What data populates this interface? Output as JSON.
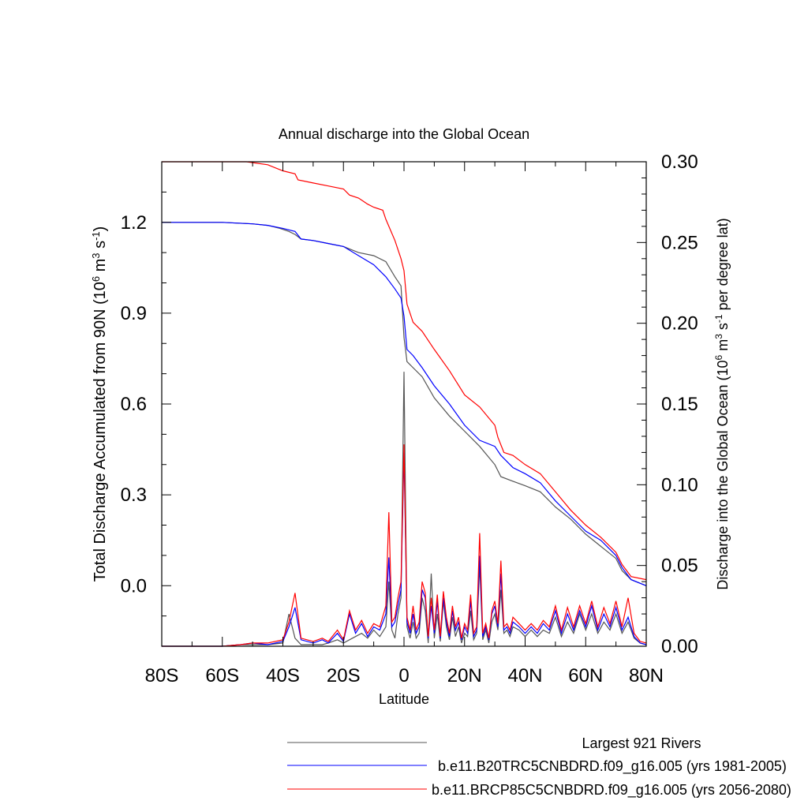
{
  "chart_data": {
    "type": "line",
    "title": "Annual discharge into the Global Ocean",
    "xlabel": "Latitude",
    "ylabel_left": "Total Discharge Accumulated from 90N (10^6 m^3 s^-1)",
    "ylabel_right": "Discharge into the Global Ocean (10^6 m^3 s^-1 per degree lat)",
    "xlim": [
      -80,
      80
    ],
    "ylim_left": [
      -0.2,
      1.4
    ],
    "ylim_right": [
      0.0,
      0.3
    ],
    "x_ticks": [
      {
        "value": -80,
        "label": "80S"
      },
      {
        "value": -60,
        "label": "60S"
      },
      {
        "value": -40,
        "label": "40S"
      },
      {
        "value": -20,
        "label": "20S"
      },
      {
        "value": 0,
        "label": "0"
      },
      {
        "value": 20,
        "label": "20N"
      },
      {
        "value": 40,
        "label": "40N"
      },
      {
        "value": 60,
        "label": "60N"
      },
      {
        "value": 80,
        "label": "80N"
      }
    ],
    "y_left_ticks": [
      {
        "value": 0.0,
        "label": "0.0"
      },
      {
        "value": 0.3,
        "label": "0.3"
      },
      {
        "value": 0.6,
        "label": "0.6"
      },
      {
        "value": 0.9,
        "label": "0.9"
      },
      {
        "value": 1.2,
        "label": "1.2"
      }
    ],
    "y_right_ticks": [
      {
        "value": 0.0,
        "label": "0.00"
      },
      {
        "value": 0.05,
        "label": "0.05"
      },
      {
        "value": 0.1,
        "label": "0.10"
      },
      {
        "value": 0.15,
        "label": "0.15"
      },
      {
        "value": 0.2,
        "label": "0.20"
      },
      {
        "value": 0.25,
        "label": "0.25"
      },
      {
        "value": 0.3,
        "label": "0.30"
      }
    ],
    "legend": [
      {
        "label": "Largest 921 Rivers",
        "color": "#555555"
      },
      {
        "label": "b.e11.B20TRC5CNBDRD.f09_g16.005 (yrs 1981-2005)",
        "color": "#0000ff"
      },
      {
        "label": "b.e11.BRCP85C5CNBDRD.f09_g16.005 (yrs 2056-2080)",
        "color": "#ff0000"
      }
    ],
    "series": [
      {
        "name": "Largest 921 Rivers",
        "axis": "left",
        "color": "#555555",
        "x": [
          -80,
          -60,
          -50,
          -45,
          -41,
          -38,
          -36,
          -34,
          -30,
          -25,
          -20,
          -15,
          -10,
          -6,
          -3,
          -1,
          0,
          1,
          3,
          6,
          10,
          15,
          20,
          25,
          30,
          32,
          36,
          40,
          45,
          50,
          55,
          60,
          65,
          70,
          72,
          75,
          80
        ],
        "y": [
          1.2,
          1.2,
          1.195,
          1.19,
          1.18,
          1.17,
          1.16,
          1.145,
          1.14,
          1.13,
          1.12,
          1.1,
          1.09,
          1.07,
          1.02,
          0.99,
          0.82,
          0.74,
          0.72,
          0.69,
          0.62,
          0.56,
          0.51,
          0.46,
          0.4,
          0.36,
          0.345,
          0.33,
          0.31,
          0.26,
          0.22,
          0.17,
          0.13,
          0.09,
          0.05,
          0.02,
          0.0
        ]
      },
      {
        "name": "b.e11.B20TRC5CNBDRD.f09_g16.005 (yrs 1981-2005)",
        "axis": "left",
        "color": "#0000ff",
        "x": [
          -80,
          -60,
          -50,
          -45,
          -40,
          -36,
          -34,
          -30,
          -25,
          -20,
          -15,
          -10,
          -6,
          -3,
          -1,
          0,
          1,
          3,
          6,
          10,
          15,
          20,
          25,
          30,
          32,
          36,
          40,
          45,
          50,
          55,
          60,
          65,
          70,
          72,
          75,
          80
        ],
        "y": [
          1.2,
          1.2,
          1.195,
          1.19,
          1.18,
          1.17,
          1.145,
          1.14,
          1.13,
          1.12,
          1.09,
          1.06,
          1.02,
          0.98,
          0.95,
          0.89,
          0.78,
          0.76,
          0.72,
          0.66,
          0.6,
          0.53,
          0.48,
          0.46,
          0.43,
          0.39,
          0.37,
          0.34,
          0.28,
          0.23,
          0.18,
          0.15,
          0.1,
          0.06,
          0.02,
          0.0
        ]
      },
      {
        "name": "b.e11.BRCP85C5CNBDRD.f09_g16.005 (yrs 2056-2080)",
        "axis": "left",
        "color": "#ff0000",
        "x": [
          -80,
          -60,
          -52,
          -45,
          -40,
          -36,
          -35,
          -30,
          -25,
          -20,
          -18,
          -15,
          -12,
          -10,
          -7,
          -6,
          -3,
          -1,
          0,
          1,
          3,
          6,
          10,
          15,
          20,
          25,
          30,
          31,
          33,
          36,
          40,
          45,
          50,
          55,
          60,
          65,
          70,
          72,
          75,
          80
        ],
        "y": [
          1.4,
          1.4,
          1.4,
          1.39,
          1.37,
          1.36,
          1.34,
          1.33,
          1.32,
          1.31,
          1.29,
          1.28,
          1.26,
          1.25,
          1.24,
          1.21,
          1.14,
          1.08,
          1.04,
          0.93,
          0.87,
          0.84,
          0.78,
          0.71,
          0.63,
          0.59,
          0.53,
          0.49,
          0.44,
          0.43,
          0.4,
          0.37,
          0.31,
          0.25,
          0.2,
          0.16,
          0.11,
          0.07,
          0.03,
          0.02
        ]
      },
      {
        "name": "Largest 921 Rivers (per degree lat)",
        "axis": "right",
        "color": "#555555",
        "x": [
          -80,
          -60,
          -54,
          -50,
          -45,
          -40,
          -38,
          -36,
          -34,
          -30,
          -27,
          -25,
          -22,
          -20,
          -18,
          -16,
          -14,
          -12,
          -10,
          -8,
          -6,
          -5,
          -4,
          -3,
          -2,
          -1,
          0,
          1,
          2,
          3,
          4,
          5,
          6,
          7,
          8,
          9,
          10,
          11,
          12,
          13,
          14,
          15,
          16,
          17,
          18,
          19,
          20,
          21,
          22,
          23,
          24,
          25,
          26,
          27,
          28,
          29,
          30,
          31,
          32,
          33,
          34,
          35,
          36,
          38,
          40,
          42,
          44,
          46,
          48,
          50,
          52,
          54,
          56,
          58,
          60,
          62,
          64,
          66,
          68,
          70,
          72,
          74,
          76,
          78,
          80
        ],
        "y": [
          0.0,
          0.0,
          0.001,
          0.001,
          0.001,
          0.002,
          0.02,
          0.005,
          0.001,
          0.001,
          0.001,
          0.002,
          0.004,
          0.002,
          0.004,
          0.006,
          0.008,
          0.005,
          0.01,
          0.006,
          0.012,
          0.04,
          0.01,
          0.005,
          0.02,
          0.03,
          0.17,
          0.012,
          0.005,
          0.015,
          0.005,
          0.008,
          0.03,
          0.022,
          0.002,
          0.045,
          0.005,
          0.02,
          0.003,
          0.028,
          0.012,
          0.004,
          0.018,
          0.006,
          0.012,
          0.002,
          0.008,
          0.006,
          0.022,
          0.004,
          0.008,
          0.05,
          0.004,
          0.01,
          0.002,
          0.015,
          0.02,
          0.01,
          0.035,
          0.008,
          0.01,
          0.006,
          0.012,
          0.01,
          0.006,
          0.01,
          0.006,
          0.01,
          0.008,
          0.018,
          0.006,
          0.015,
          0.008,
          0.02,
          0.01,
          0.02,
          0.008,
          0.015,
          0.01,
          0.02,
          0.008,
          0.015,
          0.005,
          0.002,
          0.001
        ]
      },
      {
        "name": "b.e11.B20TRC5CNBDRD.f09_g16.005 (per degree lat)",
        "axis": "right",
        "color": "#0000ff",
        "x": [
          -80,
          -60,
          -54,
          -50,
          -45,
          -40,
          -38,
          -36,
          -34,
          -30,
          -27,
          -25,
          -22,
          -20,
          -18,
          -16,
          -14,
          -12,
          -10,
          -8,
          -6,
          -5,
          -4,
          -3,
          -2,
          -1,
          0,
          1,
          2,
          3,
          4,
          5,
          6,
          7,
          8,
          9,
          10,
          11,
          12,
          13,
          14,
          15,
          16,
          17,
          18,
          19,
          20,
          21,
          22,
          23,
          24,
          25,
          26,
          27,
          28,
          29,
          30,
          31,
          32,
          33,
          34,
          35,
          36,
          38,
          40,
          42,
          44,
          46,
          48,
          50,
          52,
          54,
          56,
          58,
          60,
          62,
          64,
          66,
          68,
          70,
          72,
          74,
          76,
          78,
          80
        ],
        "y": [
          0.0,
          0.0,
          0.001,
          0.002,
          0.001,
          0.003,
          0.012,
          0.024,
          0.004,
          0.002,
          0.004,
          0.002,
          0.008,
          0.003,
          0.02,
          0.008,
          0.014,
          0.006,
          0.012,
          0.01,
          0.02,
          0.055,
          0.012,
          0.015,
          0.025,
          0.035,
          0.12,
          0.015,
          0.008,
          0.02,
          0.008,
          0.012,
          0.035,
          0.03,
          0.005,
          0.025,
          0.008,
          0.028,
          0.005,
          0.03,
          0.015,
          0.006,
          0.022,
          0.01,
          0.015,
          0.004,
          0.012,
          0.008,
          0.028,
          0.006,
          0.01,
          0.056,
          0.006,
          0.012,
          0.004,
          0.02,
          0.025,
          0.012,
          0.045,
          0.01,
          0.012,
          0.008,
          0.015,
          0.012,
          0.008,
          0.012,
          0.008,
          0.014,
          0.01,
          0.022,
          0.008,
          0.02,
          0.01,
          0.022,
          0.012,
          0.025,
          0.01,
          0.02,
          0.012,
          0.024,
          0.01,
          0.018,
          0.006,
          0.002,
          0.001
        ]
      },
      {
        "name": "b.e11.BRCP85C5CNBDRD.f09_g16.005 (per degree lat)",
        "axis": "right",
        "color": "#ff0000",
        "x": [
          -80,
          -60,
          -54,
          -50,
          -45,
          -40,
          -38,
          -36,
          -34,
          -30,
          -27,
          -25,
          -22,
          -20,
          -18,
          -16,
          -14,
          -12,
          -10,
          -8,
          -6,
          -5,
          -4,
          -3,
          -2,
          -1,
          0,
          1,
          2,
          3,
          4,
          5,
          6,
          7,
          8,
          9,
          10,
          11,
          12,
          13,
          14,
          15,
          16,
          17,
          18,
          19,
          20,
          21,
          22,
          23,
          24,
          25,
          26,
          27,
          28,
          29,
          30,
          31,
          32,
          33,
          34,
          35,
          36,
          38,
          40,
          42,
          44,
          46,
          48,
          50,
          52,
          54,
          56,
          58,
          60,
          62,
          64,
          66,
          68,
          70,
          72,
          74,
          76,
          78,
          80
        ],
        "y": [
          0.0,
          0.0,
          0.001,
          0.002,
          0.002,
          0.004,
          0.015,
          0.033,
          0.005,
          0.003,
          0.005,
          0.003,
          0.01,
          0.004,
          0.022,
          0.01,
          0.016,
          0.008,
          0.014,
          0.012,
          0.025,
          0.083,
          0.015,
          0.018,
          0.03,
          0.04,
          0.125,
          0.018,
          0.01,
          0.025,
          0.01,
          0.015,
          0.04,
          0.033,
          0.006,
          0.03,
          0.01,
          0.032,
          0.006,
          0.034,
          0.018,
          0.008,
          0.025,
          0.012,
          0.018,
          0.005,
          0.014,
          0.01,
          0.032,
          0.008,
          0.012,
          0.07,
          0.008,
          0.014,
          0.005,
          0.022,
          0.028,
          0.014,
          0.053,
          0.012,
          0.014,
          0.01,
          0.018,
          0.014,
          0.01,
          0.014,
          0.01,
          0.016,
          0.012,
          0.025,
          0.01,
          0.024,
          0.012,
          0.025,
          0.014,
          0.028,
          0.012,
          0.024,
          0.014,
          0.028,
          0.012,
          0.03,
          0.008,
          0.003,
          0.002
        ]
      }
    ]
  }
}
